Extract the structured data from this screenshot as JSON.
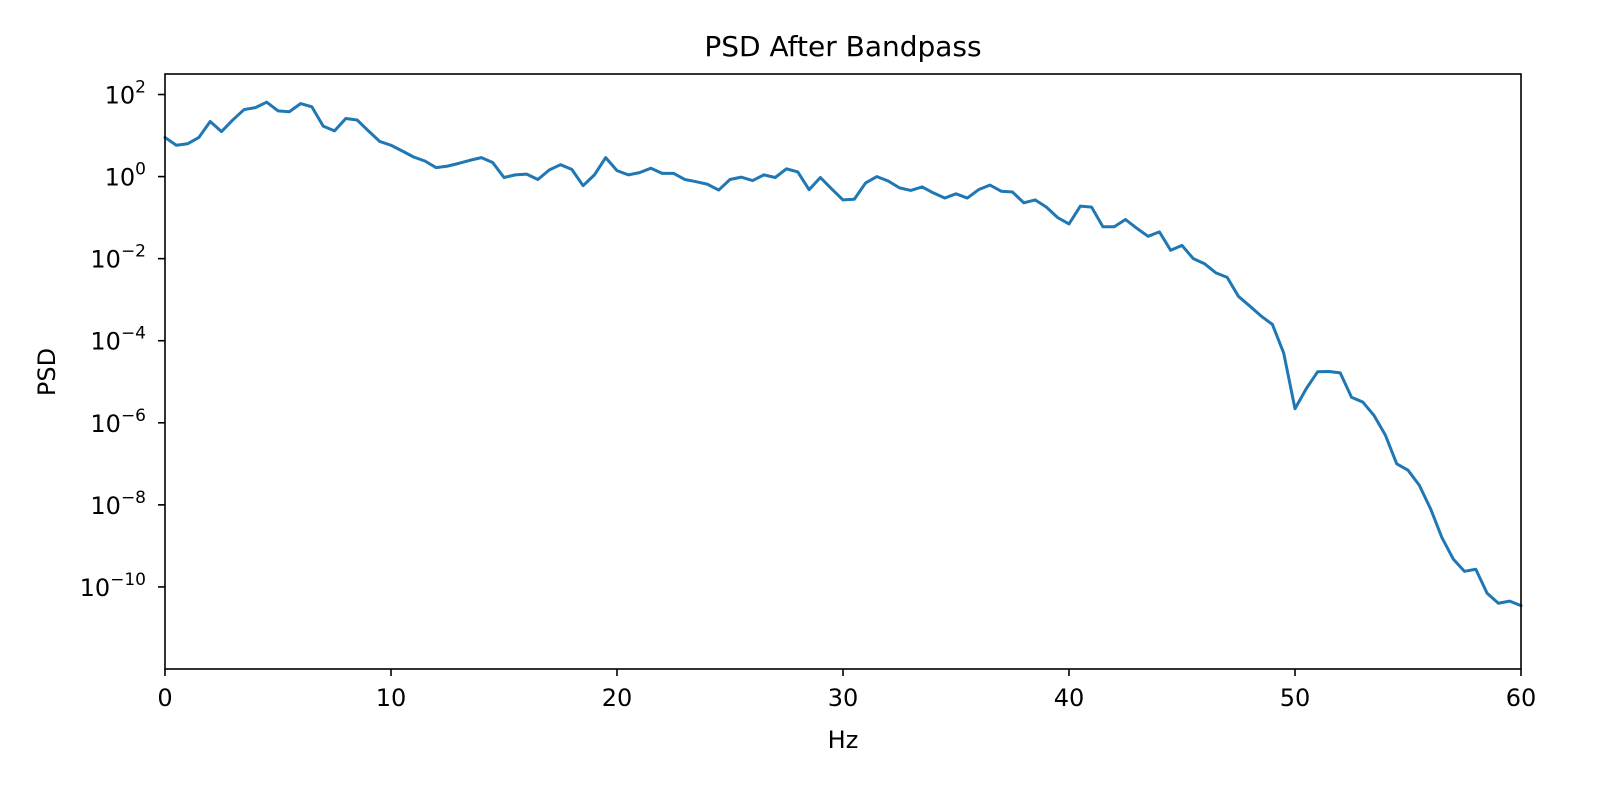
{
  "chart_data": {
    "type": "line",
    "title": "PSD After Bandpass",
    "xlabel": "Hz",
    "ylabel": "PSD",
    "xlim": [
      0,
      60
    ],
    "ylim": [
      -12,
      2.5
    ],
    "yscale": "log",
    "grid": false,
    "x_ticks": [
      0,
      10,
      20,
      30,
      40,
      50,
      60
    ],
    "x_tick_labels": [
      "0",
      "10",
      "20",
      "30",
      "40",
      "50",
      "60"
    ],
    "y_ticks": [
      2,
      0,
      -2,
      -4,
      -6,
      -8,
      -10
    ],
    "y_tick_labels": [
      {
        "base": "10",
        "exp": "2"
      },
      {
        "base": "10",
        "exp": "0"
      },
      {
        "base": "10",
        "exp": "−2"
      },
      {
        "base": "10",
        "exp": "−4"
      },
      {
        "base": "10",
        "exp": "−6"
      },
      {
        "base": "10",
        "exp": "−8"
      },
      {
        "base": "10",
        "exp": "−10"
      }
    ],
    "series": [
      {
        "color": "#1f77b4",
        "x": [
          0,
          0.5,
          1,
          1.5,
          2,
          2.5,
          3,
          3.5,
          4,
          4.5,
          5,
          5.5,
          6,
          6.5,
          7,
          7.5,
          8,
          8.5,
          9,
          9.5,
          10,
          10.5,
          11,
          11.5,
          12,
          12.5,
          13,
          13.5,
          14,
          14.5,
          15,
          15.5,
          16,
          16.5,
          17,
          17.5,
          18,
          18.5,
          19,
          19.5,
          20,
          20.5,
          21,
          21.5,
          22,
          22.5,
          23,
          23.5,
          24,
          24.5,
          25,
          25.5,
          26,
          26.5,
          27,
          27.5,
          28,
          28.5,
          29,
          29.5,
          30,
          30.5,
          31,
          31.5,
          32,
          32.5,
          33,
          33.5,
          34,
          34.5,
          35,
          35.5,
          36,
          36.5,
          37,
          37.5,
          38,
          38.5,
          39,
          39.5,
          40,
          40.5,
          41,
          41.5,
          42,
          42.5,
          43,
          43.5,
          44,
          44.5,
          45,
          45.5,
          46,
          46.5,
          47,
          47.5,
          48,
          48.5,
          49,
          49.5,
          50,
          50.5,
          51,
          51.5,
          52,
          52.5,
          53,
          53.5,
          54,
          54.5,
          55,
          55.5,
          56,
          56.5,
          57,
          57.5,
          58,
          58.5,
          59,
          59.5,
          60
        ],
        "y": [
          9,
          5.8,
          6.3,
          9,
          22,
          12.5,
          24,
          43,
          48,
          65,
          40,
          38,
          60,
          50,
          17,
          13,
          26,
          24,
          13,
          7.2,
          5.8,
          4.2,
          3.0,
          2.4,
          1.65,
          1.8,
          2.1,
          2.5,
          2.9,
          2.2,
          0.95,
          1.1,
          1.15,
          0.85,
          1.45,
          1.95,
          1.5,
          0.6,
          1.1,
          2.9,
          1.4,
          1.1,
          1.25,
          1.6,
          1.2,
          1.2,
          0.85,
          0.75,
          0.65,
          0.47,
          0.85,
          0.97,
          0.8,
          1.1,
          0.95,
          1.55,
          1.3,
          0.48,
          0.95,
          0.5,
          0.27,
          0.28,
          0.7,
          1.0,
          0.78,
          0.53,
          0.46,
          0.56,
          0.4,
          0.3,
          0.38,
          0.3,
          0.48,
          0.62,
          0.44,
          0.42,
          0.23,
          0.27,
          0.18,
          0.1,
          0.07,
          0.19,
          0.18,
          0.06,
          0.06,
          0.09,
          0.055,
          0.035,
          0.045,
          0.016,
          0.021,
          0.01,
          0.0075,
          0.0045,
          0.0035,
          0.0012,
          0.0007,
          0.0004,
          0.00025,
          5e-05,
          2.2e-06,
          6.8e-06,
          1.75e-05,
          1.78e-05,
          1.65e-05,
          4.2e-06,
          3.2e-06,
          1.5e-06,
          5e-07,
          1e-07,
          7e-08,
          3e-08,
          8e-09,
          1.6e-09,
          4.8e-10,
          2.4e-10,
          2.7e-10,
          7e-11,
          4e-11,
          4.5e-11,
          3.5e-11
        ]
      }
    ]
  }
}
